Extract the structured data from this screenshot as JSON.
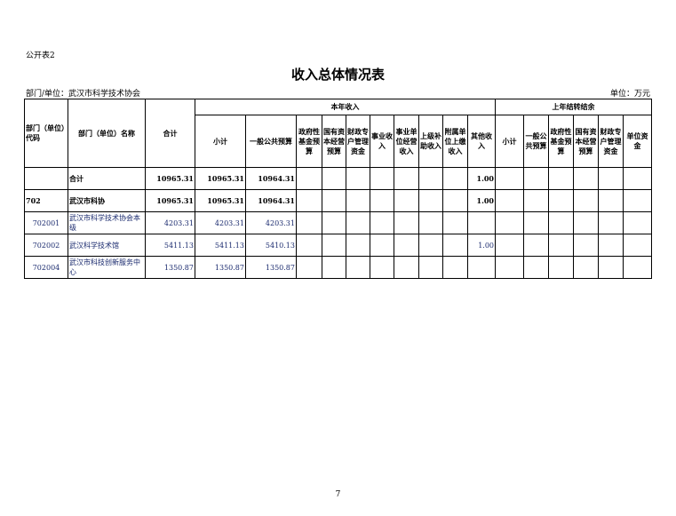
{
  "form_label": "公开表2",
  "title": "收入总体情况表",
  "dept": "部门/单位：武汉市科学技术协会",
  "unit": "单位：万元",
  "headers": {
    "code": "部门（单位）代码",
    "name": "部门（单位）名称",
    "total": "合计",
    "current_year": "本年收入",
    "carryover": "上年结转结余",
    "cy": [
      "小计",
      "一般公共预算",
      "政府性基金预算",
      "国有资本经营预算",
      "财政专户管理资金",
      "事业收入",
      "事业单位经营收入",
      "上级补助收入",
      "附属单位上缴收入",
      "其他收入"
    ],
    "co": [
      "小计",
      "一般公共预算",
      "政府性基金预算",
      "国有资本经营预算",
      "财政专户管理资金",
      "单位资金"
    ]
  },
  "rows": [
    {
      "code": "",
      "name": "合计",
      "total": "10965.31",
      "sub": "10965.31",
      "general": "10964.31",
      "other": "1.00"
    },
    {
      "code": "702",
      "name": "武汉市科协",
      "total": "10965.31",
      "sub": "10965.31",
      "general": "10964.31",
      "other": "1.00"
    },
    {
      "code": "702001",
      "name": "武汉市科学技术协会本级",
      "total": "4203.31",
      "sub": "4203.31",
      "general": "4203.31",
      "other": ""
    },
    {
      "code": "702002",
      "name": "武汉科学技术馆",
      "total": "5411.13",
      "sub": "5411.13",
      "general": "5410.13",
      "other": "1.00"
    },
    {
      "code": "702004",
      "name": "武汉市科技创新服务中心",
      "total": "1350.87",
      "sub": "1350.87",
      "general": "1350.87",
      "other": ""
    }
  ],
  "page_number": "7"
}
